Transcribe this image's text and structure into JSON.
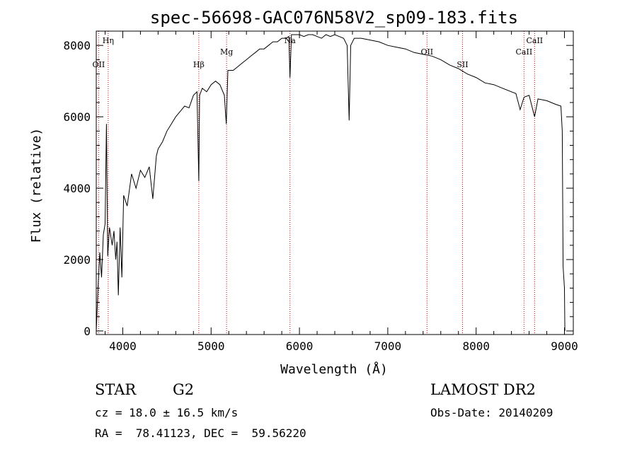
{
  "chart_data": {
    "type": "line",
    "title": "spec-56698-GAC076N58V2_sp09-183.fits",
    "xlabel": "Wavelength (Å)",
    "ylabel": "Flux (relative)",
    "xlim": [
      3700,
      9100
    ],
    "ylim": [
      -100,
      8400
    ],
    "x_ticks": [
      4000,
      5000,
      6000,
      7000,
      8000,
      9000
    ],
    "y_ticks": [
      0,
      2000,
      4000,
      6000,
      8000
    ],
    "grid": false,
    "line_color": "#000000",
    "marker_color": "#c00000",
    "series": [
      {
        "x": [
          3700,
          3720,
          3740,
          3760,
          3780,
          3800,
          3815,
          3830,
          3850,
          3880,
          3900,
          3920,
          3935,
          3950,
          3970,
          3990,
          4010,
          4050,
          4100,
          4150,
          4200,
          4250,
          4300,
          4340,
          4380,
          4400,
          4450,
          4500,
          4550,
          4600,
          4650,
          4700,
          4750,
          4800,
          4840,
          4861,
          4870,
          4900,
          4950,
          5000,
          5050,
          5100,
          5150,
          5172,
          5190,
          5250,
          5300,
          5350,
          5400,
          5450,
          5500,
          5550,
          5600,
          5650,
          5700,
          5750,
          5800,
          5850,
          5880,
          5893,
          5910,
          5950,
          6000,
          6050,
          6100,
          6150,
          6200,
          6250,
          6300,
          6350,
          6400,
          6450,
          6500,
          6540,
          6563,
          6580,
          6620,
          6700,
          6800,
          6900,
          7000,
          7100,
          7200,
          7300,
          7400,
          7500,
          7600,
          7700,
          7800,
          7900,
          8000,
          8100,
          8200,
          8300,
          8400,
          8450,
          8498,
          8542,
          8600,
          8662,
          8700,
          8800,
          8900,
          8960,
          8975,
          8985,
          9000,
          9005
        ],
        "y": [
          0,
          1200,
          2200,
          1500,
          2700,
          3000,
          5800,
          2100,
          2900,
          2400,
          2800,
          2000,
          2500,
          1000,
          2900,
          1500,
          3800,
          3500,
          4400,
          4000,
          4500,
          4300,
          4600,
          3700,
          4900,
          5100,
          5300,
          5600,
          5800,
          6000,
          6150,
          6300,
          6250,
          6600,
          6700,
          4200,
          6600,
          6800,
          6700,
          6900,
          7000,
          6900,
          6600,
          5800,
          7300,
          7300,
          7400,
          7500,
          7600,
          7700,
          7800,
          7900,
          7900,
          8000,
          8100,
          8100,
          8200,
          8200,
          8250,
          7100,
          8300,
          8300,
          8300,
          8250,
          8300,
          8300,
          8250,
          8200,
          8300,
          8250,
          8300,
          8250,
          8200,
          8000,
          5900,
          8000,
          8200,
          8200,
          8150,
          8100,
          8000,
          7950,
          7900,
          7800,
          7750,
          7700,
          7600,
          7450,
          7350,
          7200,
          7100,
          6950,
          6900,
          6800,
          6700,
          6650,
          6200,
          6550,
          6600,
          6000,
          6500,
          6450,
          6350,
          6300,
          5600,
          1800,
          1200,
          0
        ]
      }
    ],
    "line_markers": [
      {
        "x": 3727,
        "label": "OII",
        "label_row": 2
      },
      {
        "x": 3835,
        "label": "Hη",
        "label_row": 0
      },
      {
        "x": 4861,
        "label": "Hβ",
        "label_row": 2
      },
      {
        "x": 5175,
        "label": "Mg",
        "label_row": 1
      },
      {
        "x": 5893,
        "label": "Na",
        "label_row": 0
      },
      {
        "x": 7444,
        "label": "OII",
        "label_row": 1
      },
      {
        "x": 7846,
        "label": "SII",
        "label_row": 2
      },
      {
        "x": 8542,
        "label": "CaII",
        "label_row": 1
      },
      {
        "x": 8662,
        "label": "CaII",
        "label_row": 0
      }
    ]
  },
  "info": {
    "class": "STAR",
    "subclass": "G2",
    "survey": "LAMOST DR2",
    "cz": "cz = 18.0 ± 16.5 km/s",
    "obs_date": "Obs-Date: 20140209",
    "coords": "RA =  78.41123, DEC =  59.56220"
  }
}
